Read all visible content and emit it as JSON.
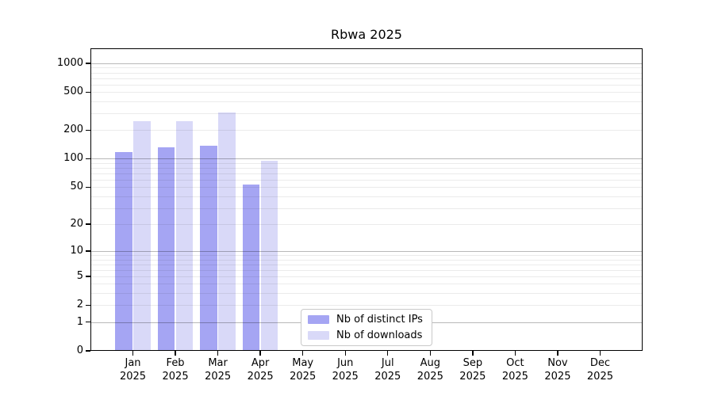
{
  "window": {
    "title": "Rbwa 2025"
  },
  "chart_data": {
    "type": "bar",
    "title": "Rbwa 2025",
    "categories": [
      "Jan 2025",
      "Feb 2025",
      "Mar 2025",
      "Apr 2025",
      "May 2025",
      "Jun 2025",
      "Jul 2025",
      "Aug 2025",
      "Sep 2025",
      "Oct 2025",
      "Nov 2025",
      "Dec 2025"
    ],
    "series": [
      {
        "name": "Nb of distinct IPs",
        "color": "#a5a5f3",
        "values": [
          117,
          131,
          138,
          53,
          0,
          0,
          0,
          0,
          0,
          0,
          0,
          0
        ]
      },
      {
        "name": "Nb of downloads",
        "color": "#d9d9f8",
        "values": [
          250,
          250,
          305,
          95,
          0,
          0,
          0,
          0,
          0,
          0,
          0,
          0
        ]
      }
    ],
    "xlabel": "",
    "ylabel": "",
    "yscale": "log1p",
    "yticks": [
      1000,
      500,
      200,
      100,
      50,
      20,
      10,
      5,
      2,
      1,
      0
    ],
    "ylim": [
      0,
      1500
    ],
    "grid": {
      "horizontal_major": [
        1,
        10,
        100,
        1000
      ],
      "horizontal_minor_decades": [
        1,
        10,
        100
      ]
    },
    "legend": {
      "position": "lower center"
    }
  }
}
